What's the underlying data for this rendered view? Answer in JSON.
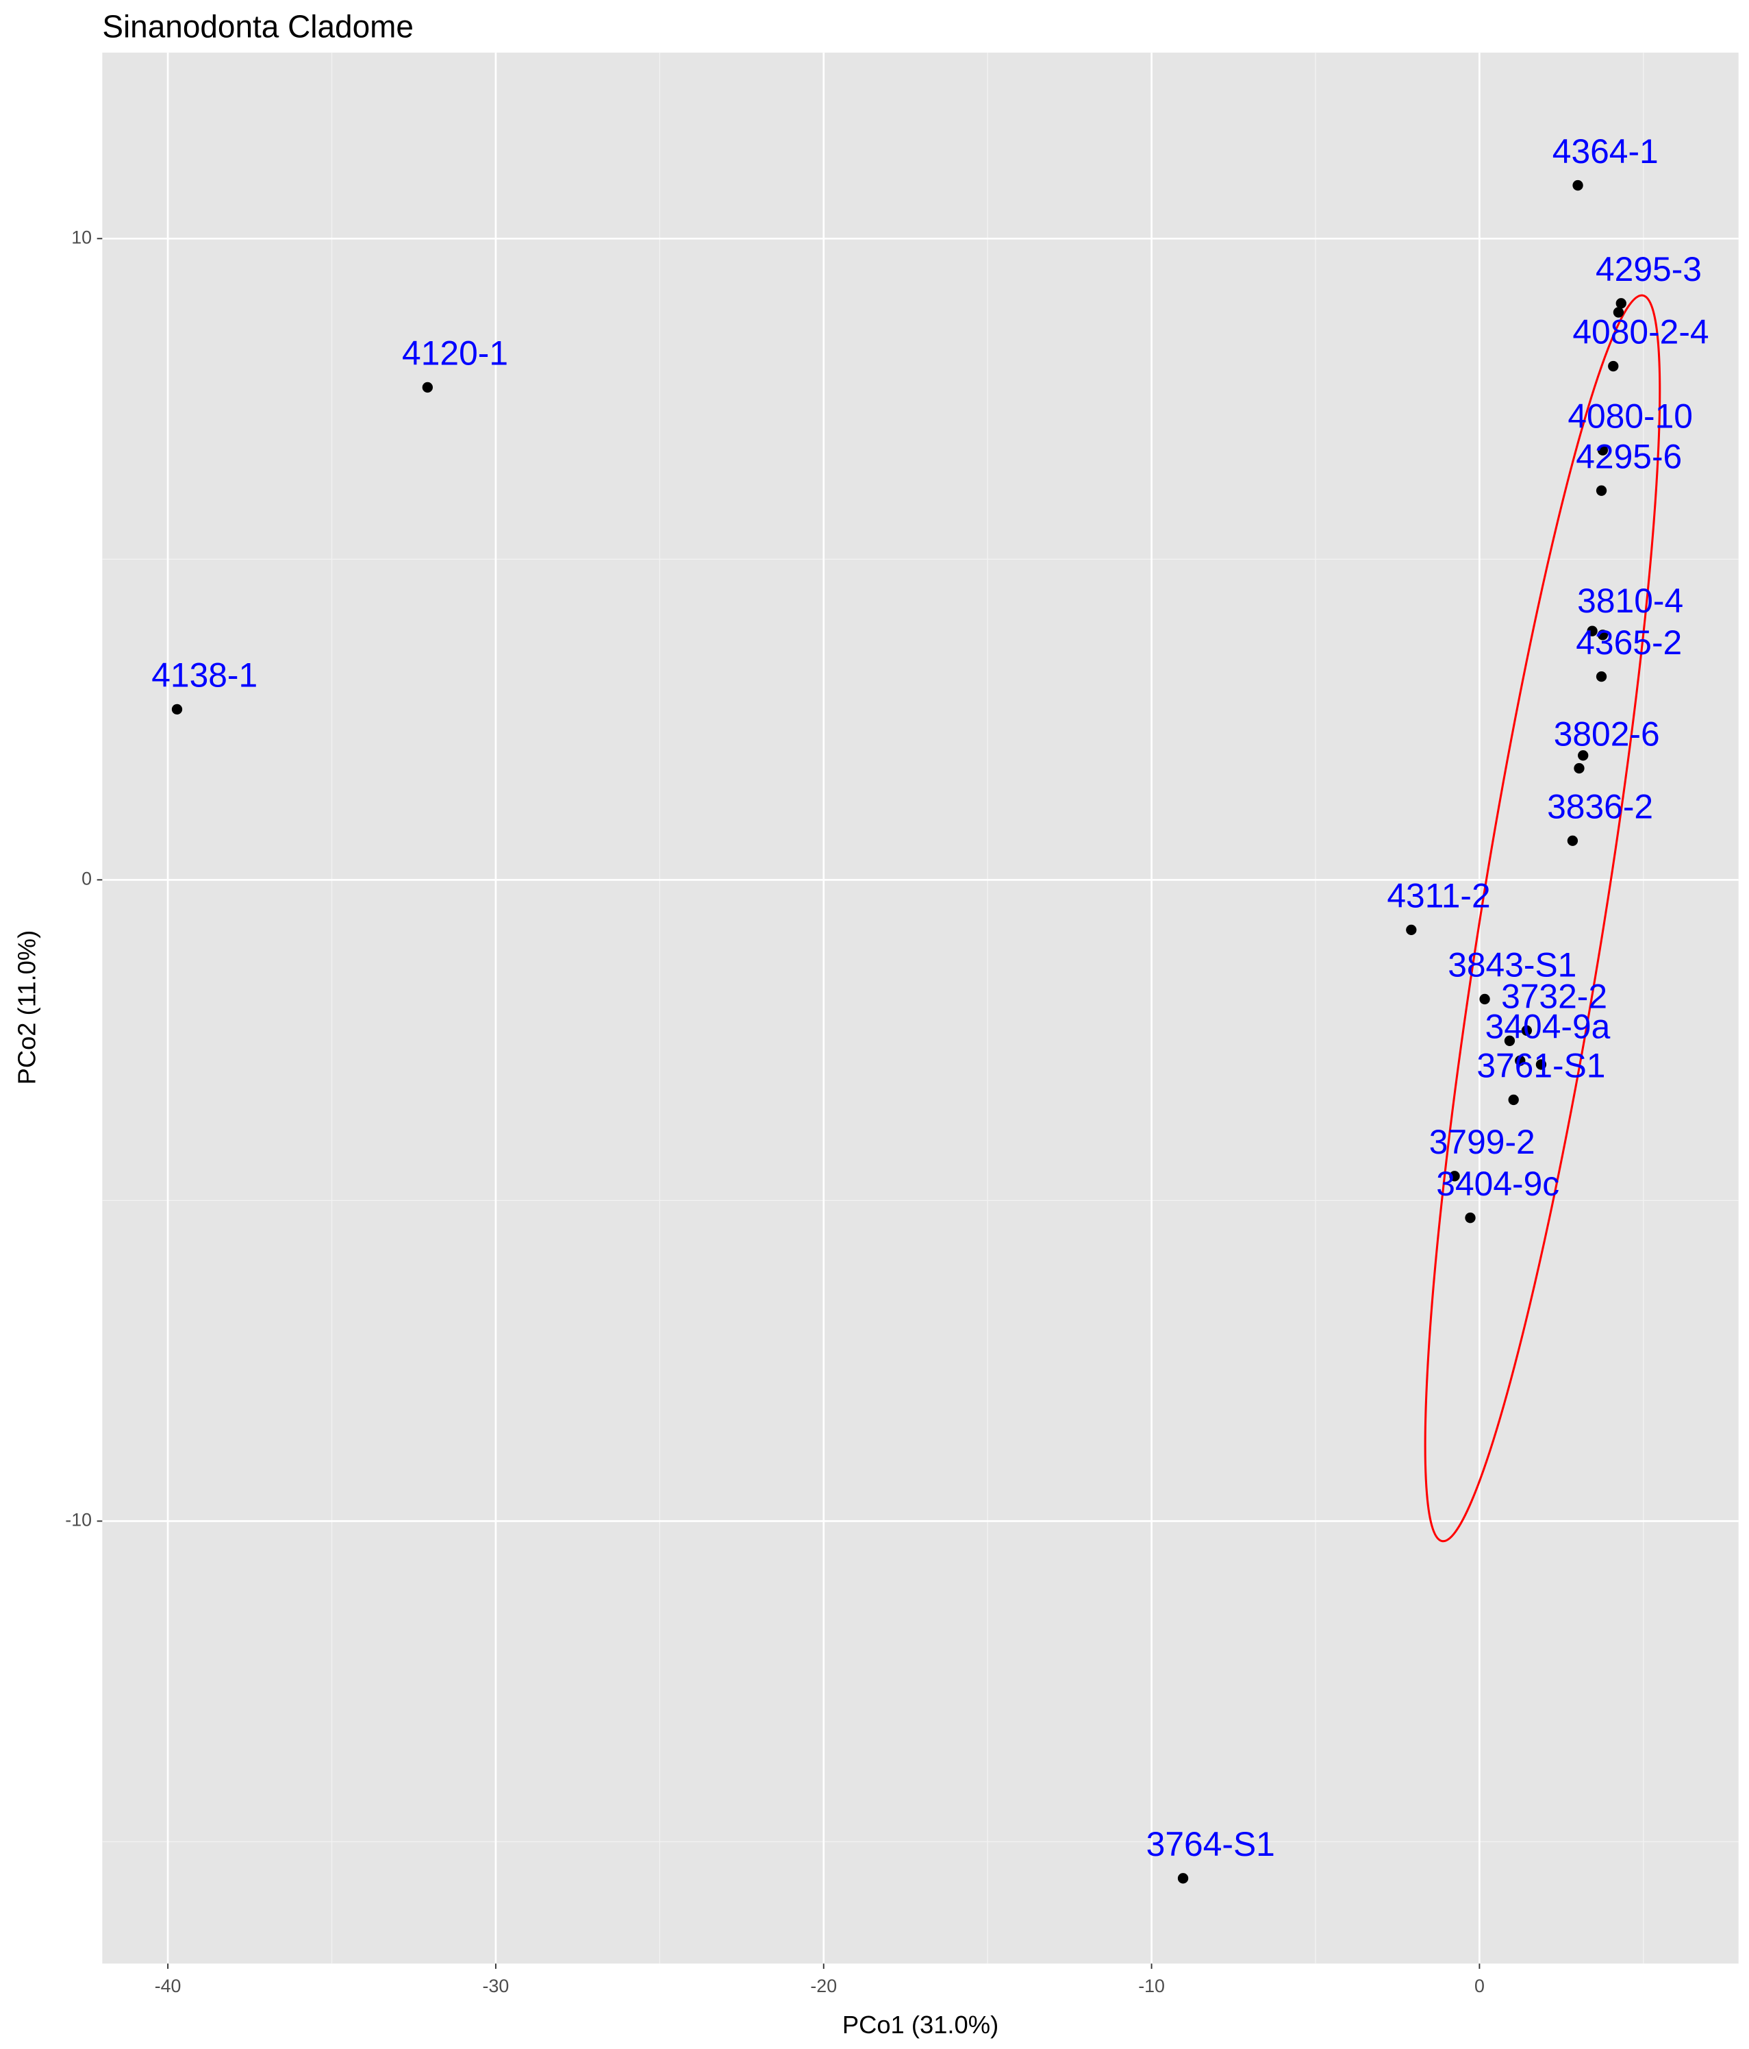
{
  "chart_data": {
    "type": "scatter",
    "title": "Sinanodonta Cladome",
    "x_label": "PCo1 (31.0%)",
    "y_label": "PCo2 (11.0%)",
    "xlim": [
      -42,
      7.9
    ],
    "ylim": [
      -16.9,
      12.9
    ],
    "xticks": [
      -40,
      -30,
      -20,
      -10,
      0
    ],
    "yticks": [
      -10,
      0,
      10
    ],
    "grid": true,
    "point_color": "#000000",
    "label_color": "#0000ff",
    "ellipse_color": "#ff0000",
    "x": [
      3.0,
      4.32,
      4.24,
      4.08,
      3.76,
      3.72,
      3.76,
      3.44,
      3.72,
      3.04,
      3.16,
      2.84,
      -2.08,
      0.16,
      1.44,
      1.24,
      0.92,
      1.88,
      1.04,
      -0.76,
      -0.28,
      -9.04,
      -32.08,
      -39.72
    ],
    "y": [
      10.83,
      8.99,
      8.85,
      8.01,
      6.7,
      6.07,
      3.82,
      3.88,
      3.17,
      1.74,
      1.94,
      0.61,
      -0.78,
      -1.86,
      -2.35,
      -2.82,
      -2.51,
      -2.88,
      -3.43,
      -4.62,
      -5.27,
      -15.57,
      7.68,
      2.66
    ],
    "labels": [
      "4364-1",
      "4295-3",
      null,
      "4080-2-4",
      "4080-10",
      "4295-6",
      "3810-4",
      null,
      "4365-2",
      "3802-6",
      null,
      "3836-2",
      "4311-2",
      "3843-S1",
      "3732-2",
      "3404-9a",
      null,
      null,
      "3761-S1",
      "3799-2",
      "3404-9c",
      "3764-S1",
      "4120-1",
      "4138-1"
    ]
  }
}
